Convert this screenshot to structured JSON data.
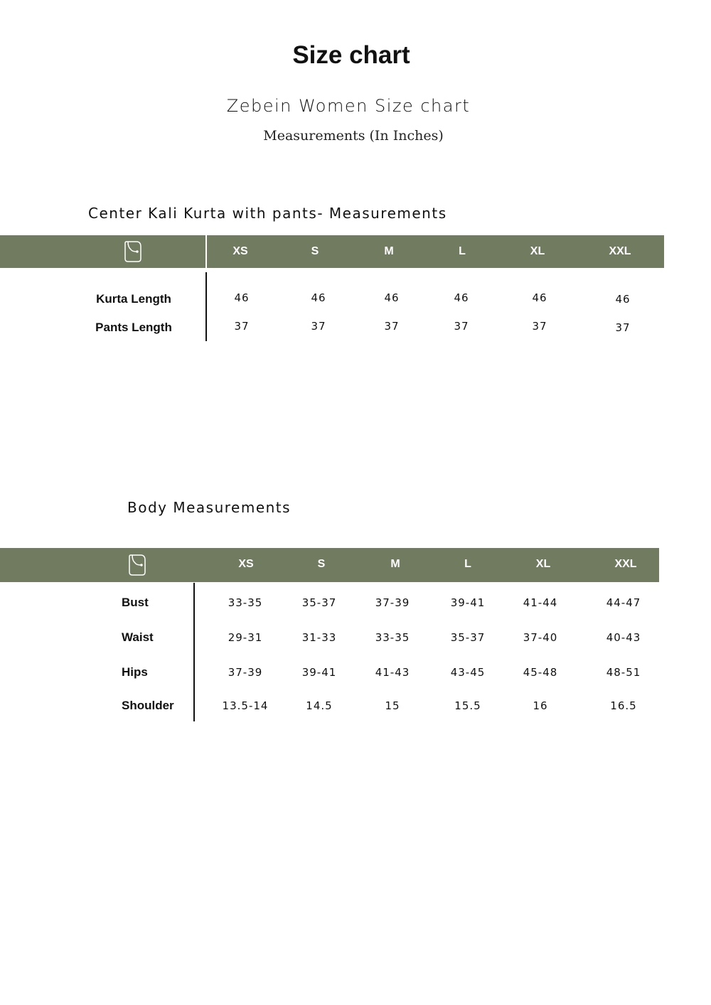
{
  "title": "Size chart",
  "subtitle": "Zebein Women Size chart",
  "units_note": "Measurements (In Inches)",
  "colors": {
    "header_bg": "#717b60",
    "header_text": "#ffffff"
  },
  "header_icon": "measuring-tape-icon",
  "sizes": [
    "XS",
    "S",
    "M",
    "L",
    "XL",
    "XXL"
  ],
  "garment_table": {
    "heading": "Center Kali Kurta with pants-  Measurements",
    "rows": [
      {
        "label": "Kurta  Length",
        "values": [
          "46",
          "46",
          "46",
          "46",
          "46",
          "46"
        ]
      },
      {
        "label": "Pants Length",
        "values": [
          "37",
          "37",
          "37",
          "37",
          "37",
          "37"
        ]
      }
    ]
  },
  "body_table": {
    "heading": "Body Measurements",
    "rows": [
      {
        "label": "Bust",
        "values": [
          "33-35",
          "35-37",
          "37-39",
          "39-41",
          "41-44",
          "44-47"
        ]
      },
      {
        "label": "Waist",
        "values": [
          "29-31",
          "31-33",
          "33-35",
          "35-37",
          "37-40",
          "40-43"
        ]
      },
      {
        "label": "Hips",
        "values": [
          "37-39",
          "39-41",
          "41-43",
          "43-45",
          "45-48",
          "48-51"
        ]
      },
      {
        "label": "Shoulder",
        "values": [
          "13.5-14",
          "14.5",
          "15",
          "15.5",
          "16",
          "16.5"
        ]
      }
    ]
  }
}
